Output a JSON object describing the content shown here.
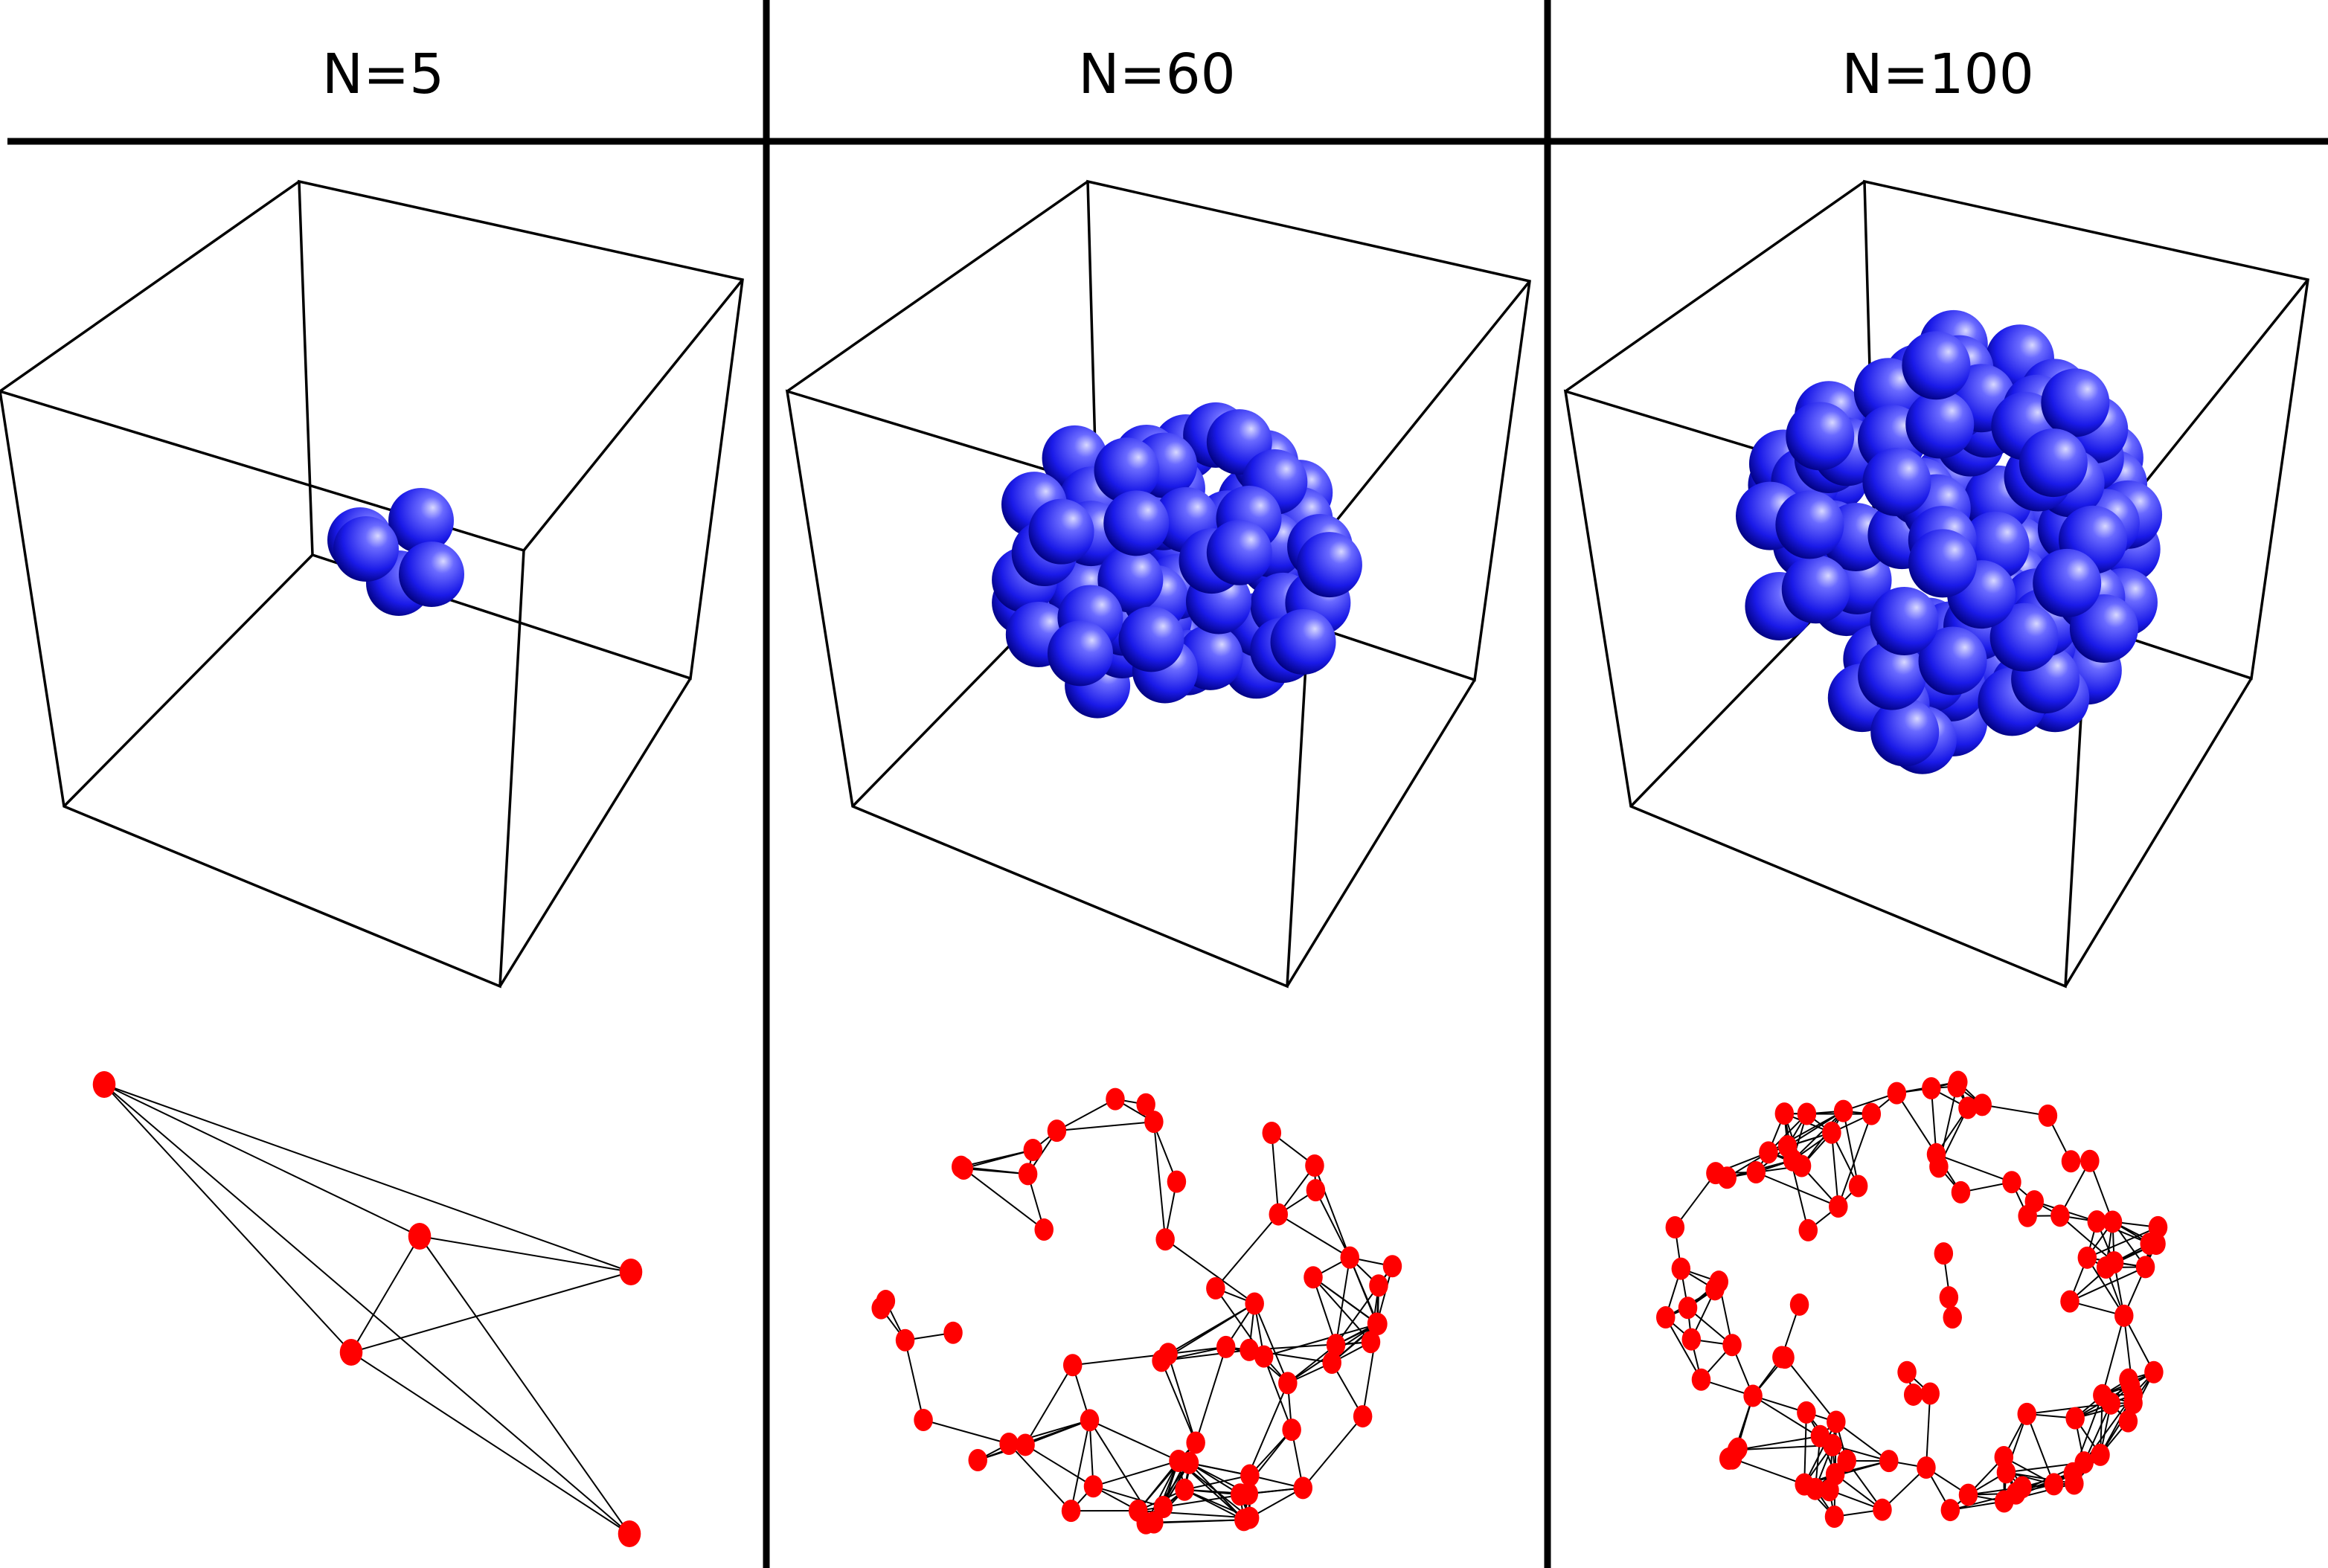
{
  "columns": [
    {
      "header": "N=5",
      "spheres": 5,
      "nodes": 5,
      "edges": 9
    },
    {
      "header": "N=60",
      "spheres": 60,
      "nodes": 60,
      "edges": 170
    },
    {
      "header": "N=100",
      "spheres": 100,
      "nodes": 100,
      "edges": 300
    }
  ],
  "colors": {
    "sphere": "#2a2aff",
    "sphere_highlight": "#c8c8ff",
    "sphere_shadow": "#00007a",
    "node": "#ff0000",
    "edge": "#000000",
    "box": "#000000",
    "divider": "#000000"
  }
}
